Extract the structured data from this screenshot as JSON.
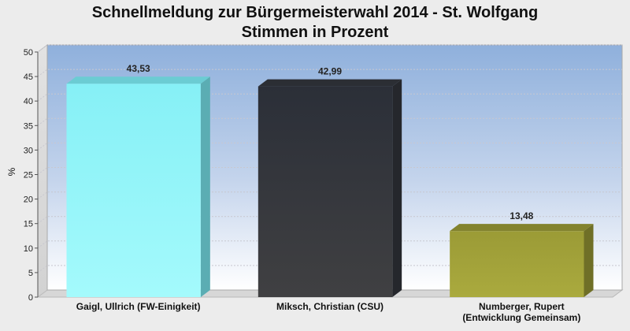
{
  "chart_data": {
    "type": "bar",
    "title": "Schnellmeldung zur Bürgermeisterwahl 2014 - St. Wolfgang",
    "subtitle": "Stimmen in Prozent",
    "ylabel": "%",
    "xlabel": "",
    "ylim": [
      0,
      50
    ],
    "yticks": [
      0,
      5,
      10,
      15,
      20,
      25,
      30,
      35,
      40,
      45,
      50
    ],
    "grid": true,
    "categories": [
      [
        "Gaigl, Ullrich (FW-Einigkeit)"
      ],
      [
        "Miksch, Christian (CSU)"
      ],
      [
        "Numberger, Rupert",
        "(Entwicklung Gemeinsam)"
      ]
    ],
    "values": [
      43.53,
      42.99,
      13.48
    ],
    "value_labels": [
      "43,53",
      "42,99",
      "13,48"
    ],
    "colors": [
      "#7ef0f8",
      "#33363d",
      "#9a9a36"
    ]
  }
}
